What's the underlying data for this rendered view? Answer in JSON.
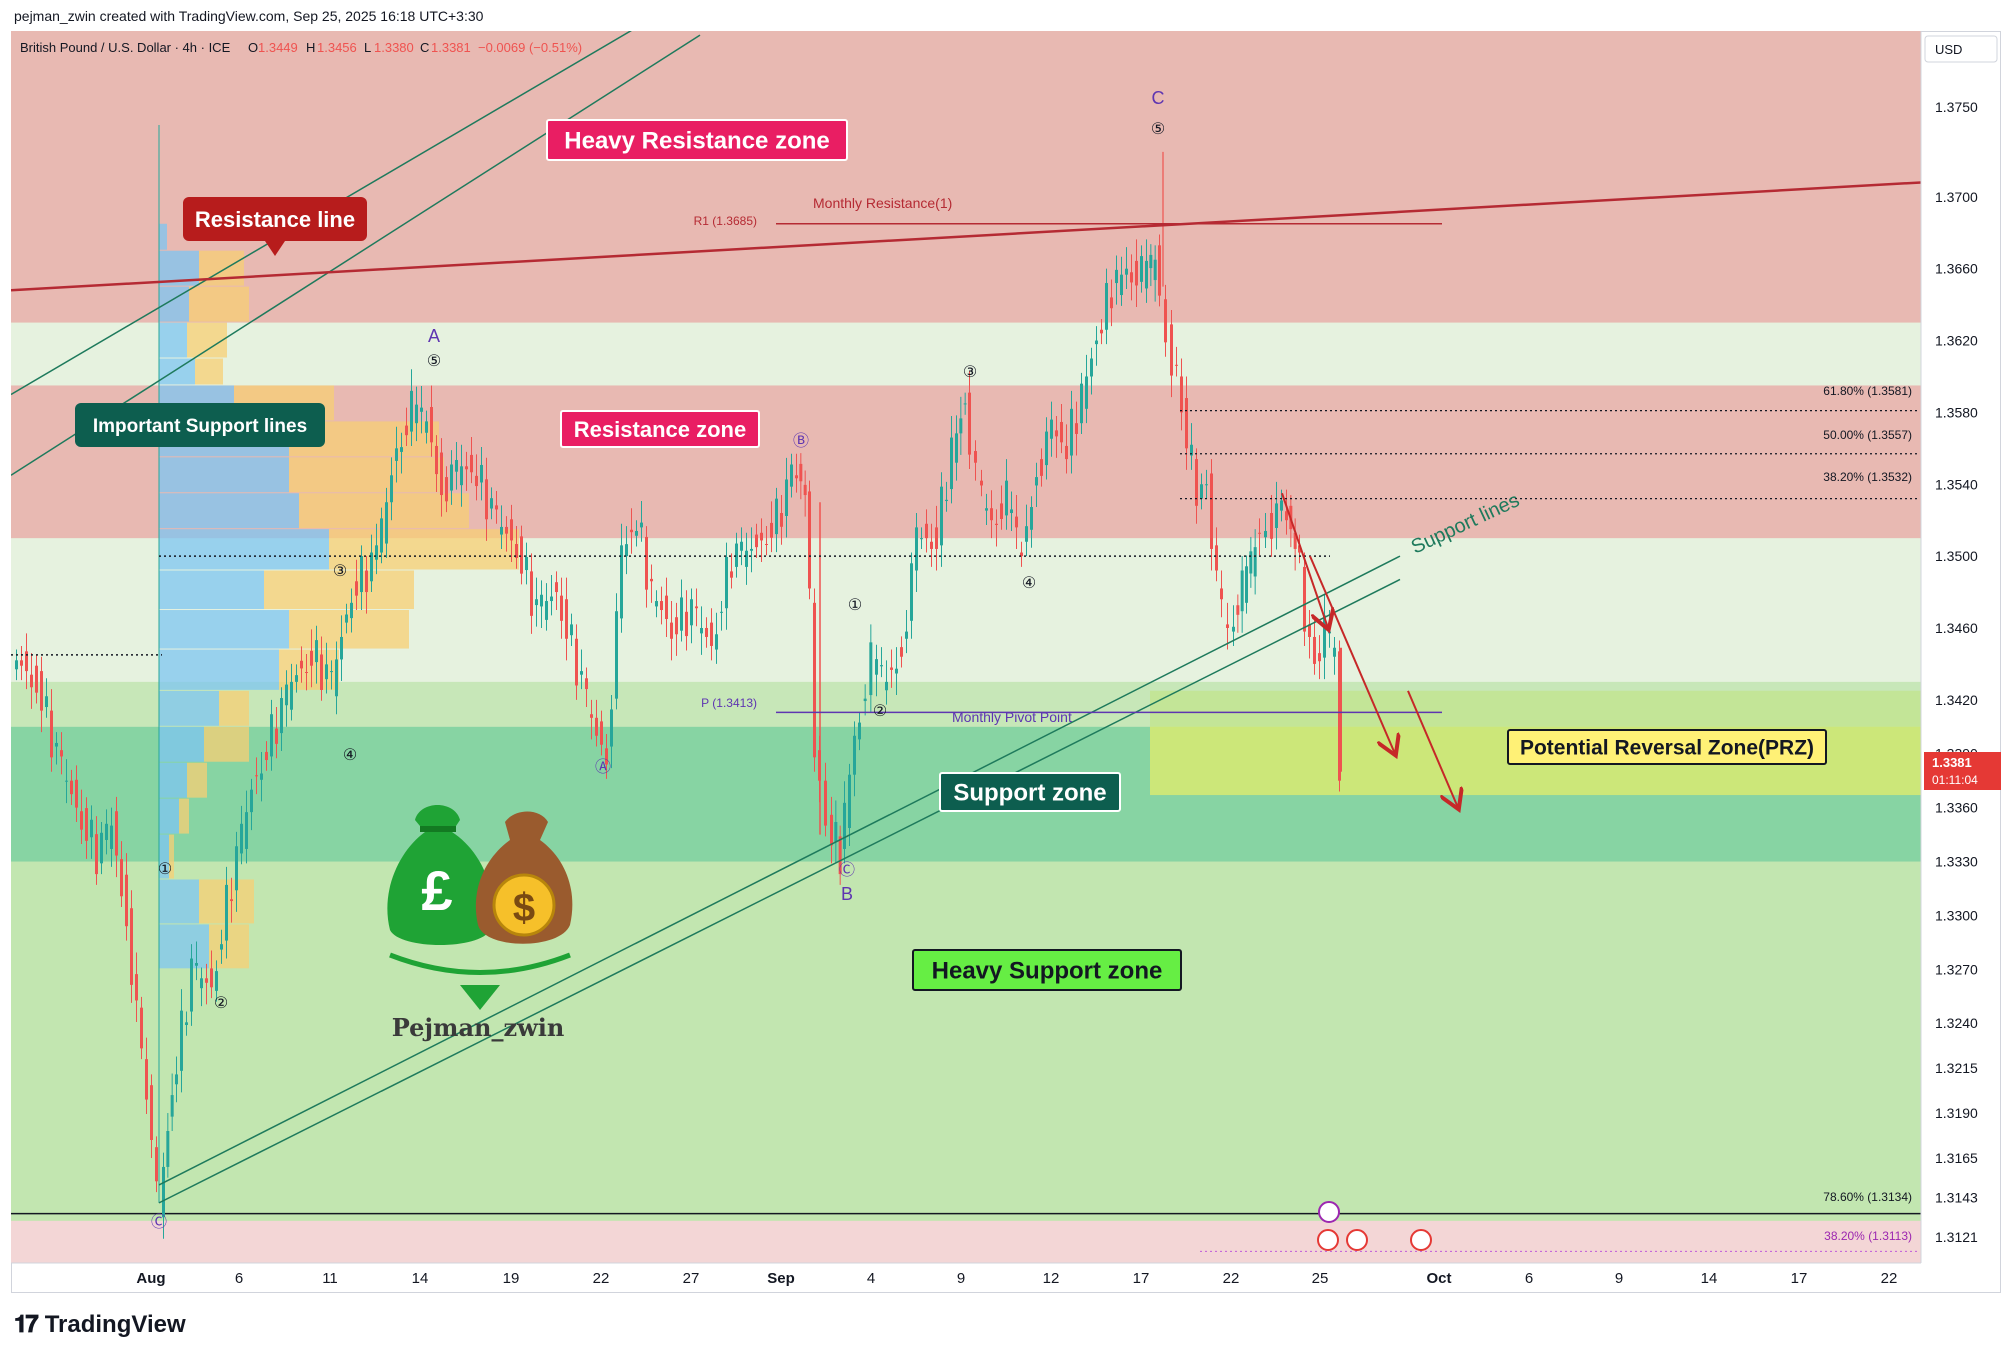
{
  "header": {
    "credit": "pejman_zwin created with TradingView.com, Sep 25, 2025 16:18 UTC+3:30",
    "symbol": "British Pound / U.S. Dollar · 4h · ICE",
    "o_label": "O",
    "o_value": "1.3449",
    "h_label": "H",
    "h_value": "1.3456",
    "l_label": "L",
    "l_value": "1.3380",
    "c_label": "C",
    "c_value": "1.3381",
    "change": "−0.0069 (−0.51%)"
  },
  "footer": {
    "brand": "TradingView"
  },
  "colors": {
    "bull": "#26a69a",
    "bear": "#ef5350",
    "resistance_fill": "#e8b3ad",
    "light_fill": "#e6f2df",
    "support_fill": "#87d4a3",
    "heavy_support_fill": "#c2e6b0",
    "prz_fill": "#d8ea72",
    "channel": "#1e7a5c",
    "resistance_line": "#b52a33"
  },
  "chart_data": {
    "type": "candlestick",
    "title": "",
    "symbol": "British Pound / U.S. Dollar",
    "timeframe": "4h",
    "currency": "USD",
    "ylim": [
      1.31,
      1.38
    ],
    "y_ticks": [
      "1.3750",
      "1.3700",
      "1.3660",
      "1.3620",
      "1.3580",
      "1.3540",
      "1.3500",
      "1.3460",
      "1.3420",
      "1.3390",
      "1.3360",
      "1.3330",
      "1.3300",
      "1.3270",
      "1.3240",
      "1.3215",
      "1.3190",
      "1.3165",
      "1.3143",
      "1.3121"
    ],
    "x_ticks": [
      "Aug",
      "6",
      "11",
      "14",
      "19",
      "22",
      "27",
      "Sep",
      "4",
      "9",
      "12",
      "17",
      "22",
      "25",
      "Oct",
      "6",
      "9",
      "14",
      "17",
      "22"
    ],
    "last_price": "1.3381",
    "countdown": "01:11:04",
    "pivot_levels": [
      {
        "label": "R1 (1.3685)",
        "name": "Monthly Resistance(1)",
        "value": 1.3685
      },
      {
        "label": "P (1.3413)",
        "name": "Monthly Pivot Point",
        "value": 1.3413
      }
    ],
    "fib_levels": [
      {
        "label": "61.80% (1.3581)",
        "value": 1.3581
      },
      {
        "label": "50.00% (1.3557)",
        "value": 1.3557
      },
      {
        "label": "38.20% (1.3532)",
        "value": 1.3532
      },
      {
        "label": "78.60% (1.3134)",
        "value": 1.3134
      },
      {
        "label": "38.20% (1.3113)",
        "value": 1.3113
      }
    ],
    "zones": [
      {
        "name": "Heavy Resistance zone",
        "from": 1.363,
        "to": 1.38
      },
      {
        "name": "Resistance zone",
        "from": 1.351,
        "to": 1.3595
      },
      {
        "name": "Support zone",
        "from": 1.333,
        "to": 1.3405
      },
      {
        "name": "Heavy Support zone",
        "from": 1.315,
        "to": 1.333
      },
      {
        "name": "Potential Reversal Zone(PRZ)",
        "from": 1.3367,
        "to": 1.3425
      }
    ],
    "annotations": [
      "Heavy Resistance zone",
      "Resistance line",
      "Important Support lines",
      "Resistance zone",
      "Support lines",
      "Support zone",
      "Potential Reversal Zone(PRZ)",
      "Heavy Support zone",
      "Monthly Resistance(1)",
      "Monthly Pivot Point"
    ],
    "waves": [
      {
        "label": "C",
        "x": "Sep 17",
        "y": 1.3755
      },
      {
        "label": "⑤",
        "x": "Sep 17",
        "y": 1.3737
      },
      {
        "label": "A",
        "x": "Aug 14",
        "y": 1.3612
      },
      {
        "label": "⑤",
        "x": "Aug 14",
        "y": 1.3595
      },
      {
        "label": "Ⓑ",
        "x": "Aug 28",
        "y": 1.3558
      },
      {
        "label": "③",
        "x": "Sep 9",
        "y": 1.359
      },
      {
        "label": "③",
        "x": "Aug 11",
        "y": 1.3484
      },
      {
        "label": "④",
        "x": "Aug 11",
        "y": 1.3392
      },
      {
        "label": "Ⓐ",
        "x": "Aug 22",
        "y": 1.337
      },
      {
        "label": "①",
        "x": "Sep 3",
        "y": 1.3468
      },
      {
        "label": "②",
        "x": "Sep 4",
        "y": 1.3405
      },
      {
        "label": "④",
        "x": "Sep 12",
        "y": 1.3479
      },
      {
        "label": "Ⓒ",
        "x": "Sep 3",
        "y": 1.3317
      },
      {
        "label": "B",
        "x": "Sep 3",
        "y": 1.3305
      },
      {
        "label": "①",
        "x": "Aug 1",
        "y": 1.3319
      },
      {
        "label": "②",
        "x": "Aug 5",
        "y": 1.3246
      },
      {
        "label": "Ⓒ",
        "x": "Aug 1",
        "y": 1.3116
      }
    ],
    "watermark": "Pejman_zwin"
  }
}
